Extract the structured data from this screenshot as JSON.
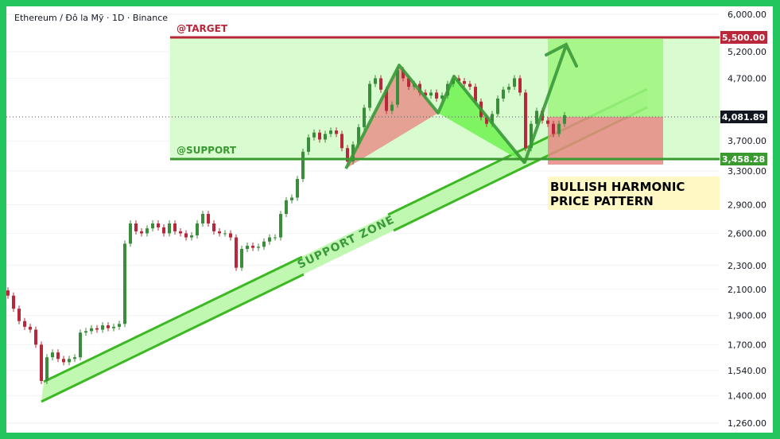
{
  "header": {
    "title": "Ethereum / Đô la Mỹ · 1D · Binance"
  },
  "colors": {
    "up": "#3a8d3a",
    "down": "#b8283a",
    "target": "#b8283a",
    "support": "#3a9a30",
    "frame": "#22c55e"
  },
  "chart_data": {
    "type": "candlestick",
    "scale": "log",
    "ylim": [
      1260,
      6000
    ],
    "y_ticks": [
      "6,000.00",
      "5,200.00",
      "4,700.00",
      "3,700.00",
      "3,300.00",
      "2,900.00",
      "2,600.00",
      "2,300.00",
      "2,100.00",
      "1,900.00",
      "1,700.00",
      "1,540.00",
      "1,400.00",
      "1,260.00"
    ],
    "y_tick_values": [
      6000,
      5200,
      4700,
      3700,
      3300,
      2900,
      2600,
      2300,
      2100,
      1900,
      1700,
      1540,
      1400,
      1260
    ],
    "closes": [
      2050,
      1950,
      1860,
      1820,
      1800,
      1700,
      1480,
      1620,
      1650,
      1610,
      1590,
      1610,
      1620,
      1780,
      1790,
      1810,
      1800,
      1830,
      1810,
      1820,
      1840,
      2500,
      2700,
      2620,
      2600,
      2650,
      2700,
      2660,
      2600,
      2700,
      2620,
      2600,
      2560,
      2580,
      2700,
      2800,
      2700,
      2620,
      2600,
      2600,
      2560,
      2280,
      2450,
      2480,
      2460,
      2470,
      2520,
      2560,
      2560,
      2800,
      2950,
      2980,
      3200,
      3550,
      3750,
      3820,
      3720,
      3800,
      3850,
      3800,
      3600,
      3420,
      3650,
      3900,
      4200,
      4600,
      4700,
      4500,
      4150,
      4250,
      4850,
      4700,
      4550,
      4600,
      4450,
      4400,
      4450,
      4350,
      4400,
      4600,
      4700,
      4650,
      4600,
      4550,
      4300,
      4050,
      3950,
      4100,
      4350,
      4500,
      4550,
      4700,
      4450,
      3600,
      3950,
      4150,
      4000,
      3950,
      3800,
      3950,
      4081.89
    ],
    "levels": {
      "target": {
        "label": "@TARGET",
        "value": 5500,
        "tag": "5,500.00"
      },
      "support": {
        "label": "@SUPPORT",
        "value": 3458.28,
        "tag": "3,458.28"
      },
      "last": {
        "value": 4081.89,
        "tag": "4,081.89"
      }
    },
    "annotations": {
      "support_zone": "SUPPORT ZONE",
      "pattern_line1": "BULLISH HARMONIC",
      "pattern_line2": "PRICE PATTERN"
    }
  }
}
